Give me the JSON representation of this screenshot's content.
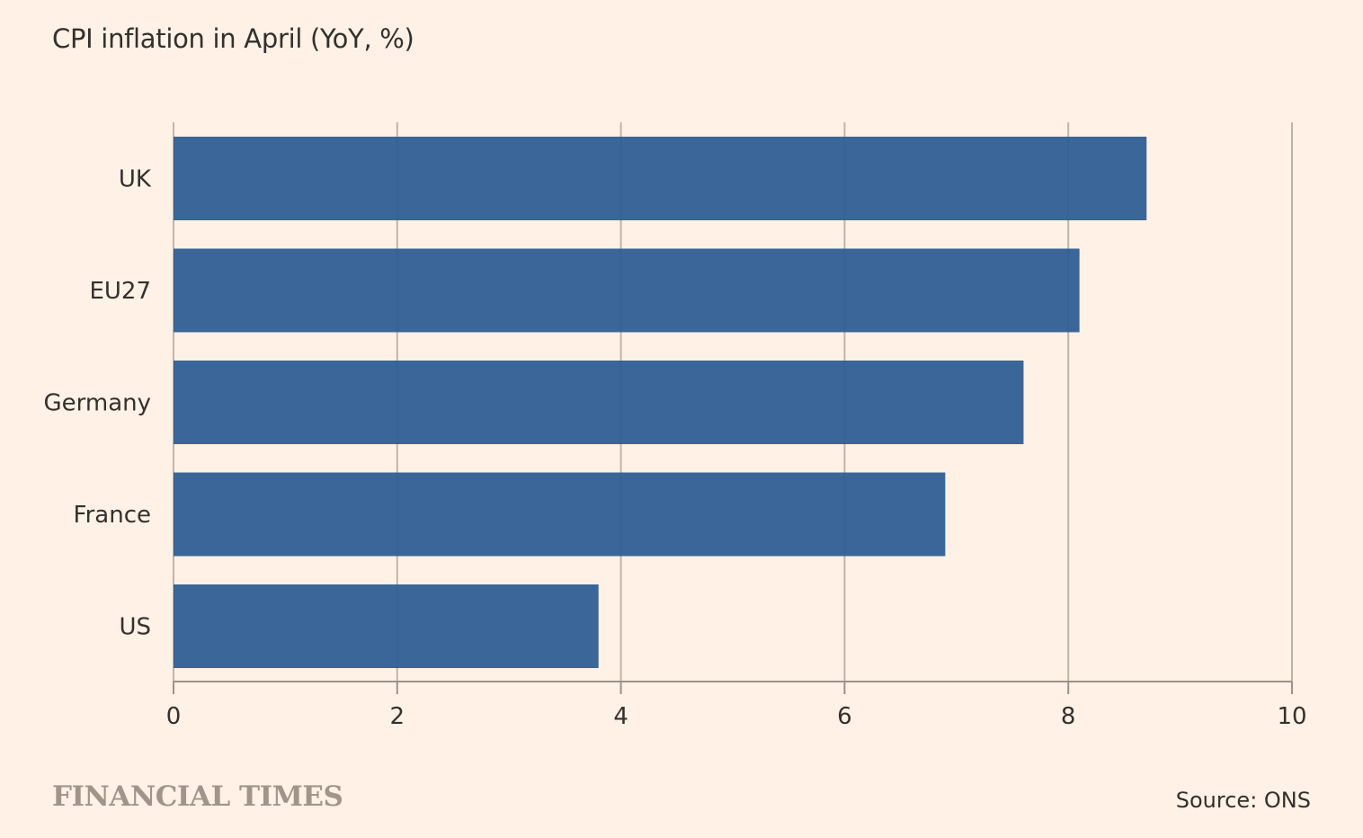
{
  "title": "CPI inflation in April (YoY, %)",
  "brand": "FINANCIAL TIMES",
  "source": "Source: ONS",
  "colors": {
    "background": "#fff1e5",
    "bar": "#2b5b93",
    "grid": "#bfb5ad",
    "axis": "#9c928a"
  },
  "chart_data": {
    "type": "bar",
    "orientation": "horizontal",
    "categories": [
      "UK",
      "EU27",
      "Germany",
      "France",
      "US"
    ],
    "values": [
      8.7,
      8.1,
      7.6,
      6.9,
      3.8
    ],
    "xlim": [
      0,
      10
    ],
    "xticks": [
      0,
      2,
      4,
      6,
      8,
      10
    ],
    "grid": true
  }
}
